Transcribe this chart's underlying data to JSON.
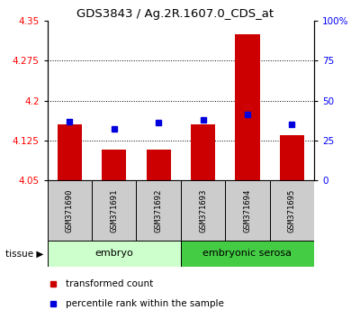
{
  "title": "GDS3843 / Ag.2R.1607.0_CDS_at",
  "samples": [
    "GSM371690",
    "GSM371691",
    "GSM371692",
    "GSM371693",
    "GSM371694",
    "GSM371695"
  ],
  "red_values": [
    4.155,
    4.108,
    4.107,
    4.155,
    4.325,
    4.135
  ],
  "blue_values": [
    37,
    32,
    36,
    38,
    41,
    35
  ],
  "ymin": 4.05,
  "ymax": 4.35,
  "y_ticks": [
    4.05,
    4.125,
    4.2,
    4.275,
    4.35
  ],
  "y2min": 0,
  "y2max": 100,
  "y2_ticks": [
    0,
    25,
    50,
    75,
    100
  ],
  "bar_width": 0.55,
  "blue_marker_size": 5,
  "red_color": "#cc0000",
  "blue_color": "#0000dd",
  "plot_bg": "#ffffff",
  "embryo_color": "#ccffcc",
  "serosa_color": "#44cc44",
  "label_bg": "#cccccc",
  "legend_red": "transformed count",
  "legend_blue": "percentile rank within the sample",
  "tissue_label": "tissue",
  "n_embryo": 3,
  "n_serosa": 3
}
